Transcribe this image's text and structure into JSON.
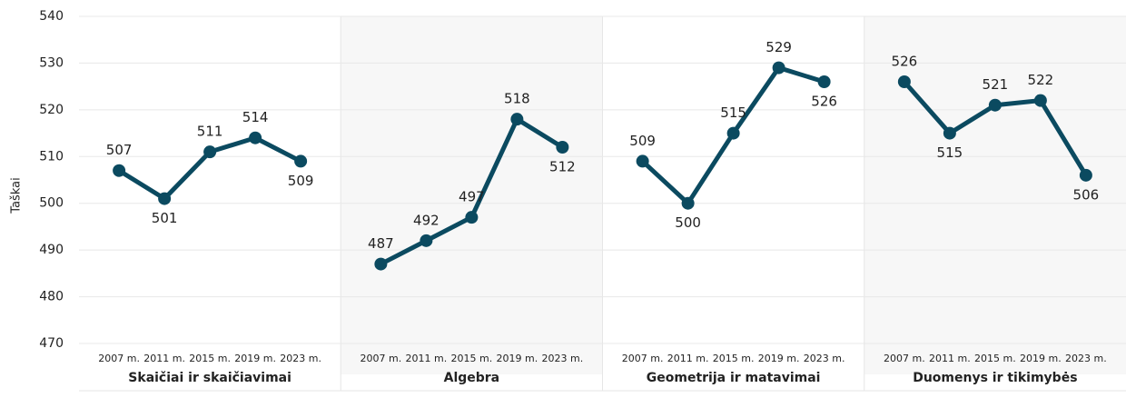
{
  "chart_data": {
    "type": "line",
    "y_label": "Taškai",
    "color": "#0b4a60",
    "ylim": [
      470,
      540
    ],
    "yticks": [
      470,
      480,
      490,
      500,
      510,
      520,
      530,
      540
    ],
    "grid": true,
    "panels": [
      {
        "title": "Skaičiai ir skaičiavimai",
        "categories": [
          "2007 m.",
          "2011 m.",
          "2015 m.",
          "2019 m.",
          "2023 m."
        ],
        "values": [
          507,
          501,
          511,
          514,
          509
        ]
      },
      {
        "title": "Algebra",
        "categories": [
          "2007 m.",
          "2011 m.",
          "2015 m.",
          "2019 m.",
          "2023 m."
        ],
        "values": [
          487,
          492,
          497,
          518,
          512
        ]
      },
      {
        "title": "Geometrija ir matavimai",
        "categories": [
          "2007 m.",
          "2011 m.",
          "2015 m.",
          "2019 m.",
          "2023 m."
        ],
        "values": [
          509,
          500,
          515,
          529,
          526
        ]
      },
      {
        "title": "Duomenys ir tikimybės",
        "categories": [
          "2007 m.",
          "2011 m.",
          "2015 m.",
          "2019 m.",
          "2023 m."
        ],
        "values": [
          526,
          515,
          521,
          522,
          506
        ]
      }
    ]
  }
}
